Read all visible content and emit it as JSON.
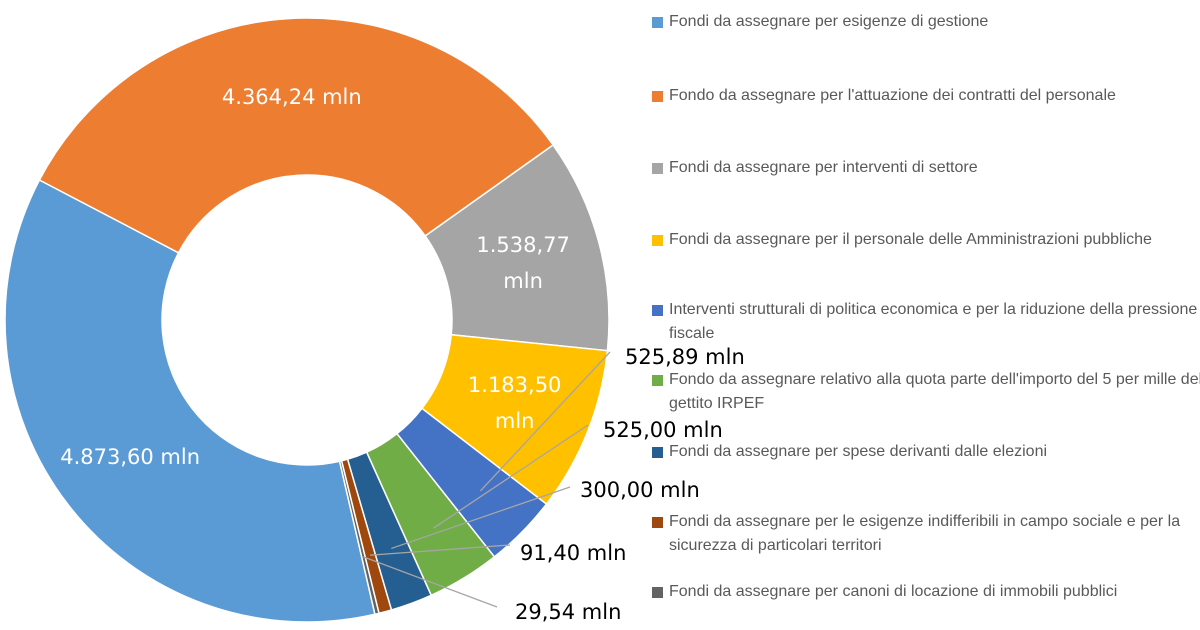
{
  "chart_data": {
    "type": "donut",
    "categories": [
      "Fondi da assegnare per esigenze di gestione",
      "Fondo da assegnare per l'attuazione dei contratti del personale",
      "Fondi da assegnare per interventi di settore",
      "Fondi da assegnare per il personale delle Amministrazioni pubbliche",
      "Interventi strutturali di politica economica e per la riduzione della pressione fiscale",
      "Fondo da assegnare relativo alla quota parte dell'importo del 5 per mille del gettito IRPEF",
      "Fondi da assegnare per spese derivanti dalle elezioni",
      "Fondi da assegnare per le esigenze indifferibili in campo sociale e per la sicurezza di particolari territori",
      "Fondi da assegnare per canoni di locazione di immobili pubblici"
    ],
    "values": [
      4873.6,
      4364.24,
      1538.77,
      1183.5,
      525.89,
      525.0,
      300.0,
      91.4,
      29.54
    ],
    "value_labels": [
      "4.873,60 mln",
      "4.364,24 mln",
      "1.538,77 mln",
      "1.183,50 mln",
      "525,89 mln",
      "525,00 mln",
      "300,00 mln",
      "91,40 mln",
      "29,54 mln"
    ],
    "colors": [
      "#5b9bd5",
      "#ed7d31",
      "#a5a5a5",
      "#ffc000",
      "#4472c4",
      "#70ad47",
      "#255e91",
      "#9e480e",
      "#636363"
    ],
    "legend": "right"
  }
}
